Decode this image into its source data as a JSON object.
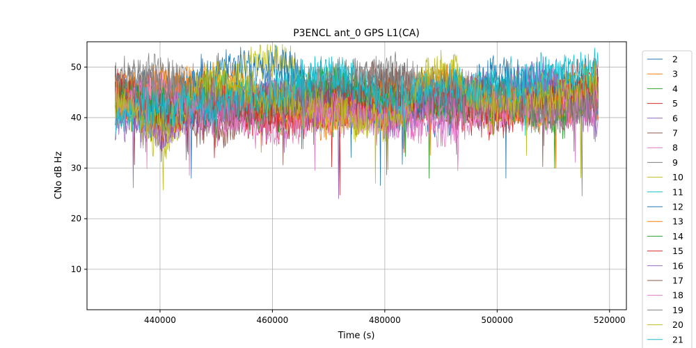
{
  "chart_data": {
    "type": "line",
    "title": "P3ENCL ant_0 GPS L1(CA)",
    "xlabel": "Time (s)",
    "ylabel": "CNo dB Hz",
    "xlim": [
      427000,
      523000
    ],
    "ylim": [
      2,
      55
    ],
    "xticks": [
      440000,
      460000,
      480000,
      500000,
      520000
    ],
    "xtick_labels": [
      "440000",
      "460000",
      "480000",
      "500000",
      "520000"
    ],
    "yticks": [
      10,
      20,
      30,
      40,
      50
    ],
    "ytick_labels": [
      "10",
      "20",
      "30",
      "40",
      "50"
    ],
    "grid": true,
    "legend_position": "outside-right",
    "series": [
      {
        "name": "2",
        "color": "#1f77b4",
        "x": [
          432000,
          440000,
          450000,
          460000,
          470000,
          480000,
          490000,
          500000,
          510000,
          518000
        ],
        "values": [
          44,
          46,
          41,
          45,
          42,
          44,
          40,
          46,
          43,
          45
        ]
      },
      {
        "name": "3",
        "color": "#ff7f0e",
        "x": [
          432000,
          440000,
          450000,
          460000,
          470000,
          480000,
          490000,
          500000,
          510000,
          518000
        ],
        "values": [
          46,
          44,
          48,
          43,
          45,
          41,
          46,
          44,
          47,
          43
        ]
      },
      {
        "name": "4",
        "color": "#2ca02c",
        "x": [
          432000,
          440000,
          450000,
          460000,
          470000,
          480000,
          490000,
          500000,
          510000,
          518000
        ],
        "values": [
          42,
          45,
          43,
          40,
          46,
          44,
          42,
          45,
          41,
          44
        ]
      },
      {
        "name": "5",
        "color": "#d62728",
        "x": [
          432000,
          440000,
          450000,
          460000,
          470000,
          480000,
          490000,
          500000,
          510000,
          518000
        ],
        "values": [
          45,
          40,
          43,
          39,
          41,
          44,
          42,
          40,
          46,
          48
        ]
      },
      {
        "name": "6",
        "color": "#9467bd",
        "x": [
          432000,
          440000,
          450000,
          460000,
          470000,
          480000,
          490000,
          500000,
          510000,
          518000
        ],
        "values": [
          40,
          38,
          42,
          44,
          41,
          43,
          45,
          42,
          47,
          40
        ]
      },
      {
        "name": "7",
        "color": "#8c564b",
        "x": [
          432000,
          440000,
          450000,
          460000,
          470000,
          480000,
          490000,
          500000,
          510000,
          518000
        ],
        "values": [
          43,
          41,
          38,
          42,
          44,
          46,
          43,
          41,
          44,
          45
        ]
      },
      {
        "name": "8",
        "color": "#e377c2",
        "x": [
          432000,
          440000,
          450000,
          460000,
          470000,
          480000,
          490000,
          500000,
          510000,
          518000
        ],
        "values": [
          41,
          44,
          39,
          43,
          40,
          42,
          38,
          41,
          43,
          40
        ]
      },
      {
        "name": "9",
        "color": "#7f7f7f",
        "x": [
          432000,
          440000,
          450000,
          460000,
          470000,
          480000,
          490000,
          500000,
          510000,
          518000
        ],
        "values": [
          47,
          49,
          45,
          44,
          46,
          48,
          44,
          42,
          45,
          43
        ]
      },
      {
        "name": "10",
        "color": "#bcbd22",
        "x": [
          432000,
          440000,
          450000,
          460000,
          470000,
          480000,
          490000,
          500000,
          510000,
          518000
        ],
        "values": [
          44,
          36,
          46,
          52,
          42,
          40,
          48,
          41,
          44,
          46
        ]
      },
      {
        "name": "11",
        "color": "#17becf",
        "x": [
          432000,
          440000,
          450000,
          460000,
          470000,
          480000,
          490000,
          500000,
          510000,
          518000
        ],
        "values": [
          42,
          40,
          44,
          46,
          48,
          43,
          45,
          47,
          49,
          47
        ]
      },
      {
        "name": "12",
        "color": "#1f77b4",
        "x": [
          432000,
          440000,
          450000,
          460000,
          470000,
          480000,
          490000,
          500000,
          510000,
          518000
        ],
        "values": [
          45,
          43,
          49,
          51,
          44,
          41,
          43,
          48,
          45,
          44
        ]
      },
      {
        "name": "13",
        "color": "#ff7f0e",
        "x": [
          432000,
          440000,
          450000,
          460000,
          470000,
          480000,
          490000,
          500000,
          510000,
          518000
        ],
        "values": [
          43,
          47,
          44,
          42,
          40,
          45,
          47,
          43,
          41,
          44
        ]
      },
      {
        "name": "14",
        "color": "#2ca02c",
        "x": [
          432000,
          440000,
          450000,
          460000,
          470000,
          480000,
          490000,
          500000,
          510000,
          518000
        ],
        "values": [
          44,
          42,
          45,
          41,
          47,
          43,
          42,
          44,
          40,
          45
        ]
      },
      {
        "name": "15",
        "color": "#d62728",
        "x": [
          432000,
          440000,
          450000,
          460000,
          470000,
          480000,
          490000,
          500000,
          510000,
          518000
        ],
        "values": [
          47,
          39,
          44,
          40,
          42,
          41,
          43,
          42,
          44,
          46
        ]
      },
      {
        "name": "16",
        "color": "#9467bd",
        "x": [
          432000,
          440000,
          450000,
          460000,
          470000,
          480000,
          490000,
          500000,
          510000,
          518000
        ],
        "values": [
          41,
          37,
          43,
          45,
          42,
          40,
          44,
          46,
          48,
          42
        ]
      },
      {
        "name": "17",
        "color": "#8c564b",
        "x": [
          432000,
          440000,
          450000,
          460000,
          470000,
          480000,
          490000,
          500000,
          510000,
          518000
        ],
        "values": [
          44,
          42,
          40,
          43,
          45,
          47,
          46,
          44,
          42,
          43
        ]
      },
      {
        "name": "18",
        "color": "#e377c2",
        "x": [
          432000,
          440000,
          450000,
          460000,
          470000,
          480000,
          490000,
          500000,
          510000,
          518000
        ],
        "values": [
          42,
          46,
          40,
          38,
          41,
          39,
          40,
          42,
          41,
          43
        ]
      },
      {
        "name": "19",
        "color": "#7f7f7f",
        "x": [
          432000,
          440000,
          450000,
          460000,
          470000,
          480000,
          490000,
          500000,
          510000,
          518000
        ],
        "values": [
          48,
          47,
          44,
          43,
          47,
          49,
          45,
          43,
          41,
          42
        ]
      },
      {
        "name": "20",
        "color": "#bcbd22",
        "x": [
          432000,
          440000,
          450000,
          460000,
          470000,
          480000,
          490000,
          500000,
          510000,
          518000
        ],
        "values": [
          43,
          39,
          47,
          44,
          41,
          39,
          49,
          43,
          45,
          47
        ]
      },
      {
        "name": "21",
        "color": "#17becf",
        "x": [
          432000,
          440000,
          450000,
          460000,
          470000,
          480000,
          490000,
          500000,
          510000,
          518000
        ],
        "values": [
          40,
          43,
          42,
          45,
          49,
          44,
          46,
          45,
          48,
          50
        ]
      }
    ]
  }
}
